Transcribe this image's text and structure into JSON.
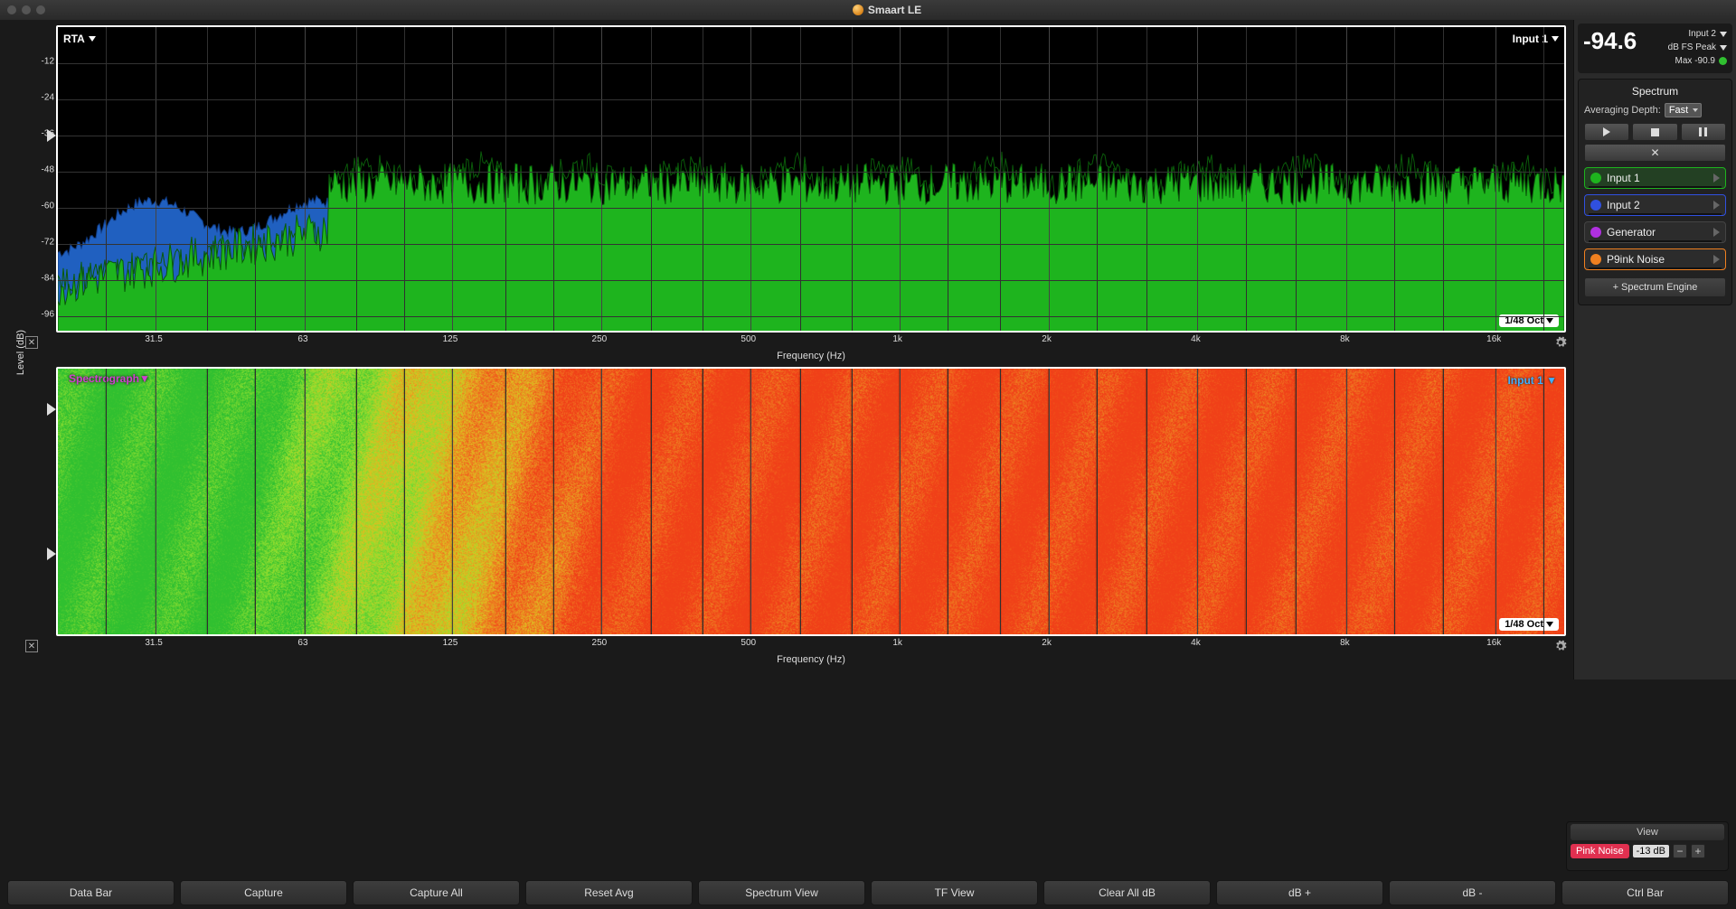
{
  "window": {
    "title": "Smaart LE"
  },
  "rta": {
    "label": "RTA",
    "input_label": "Input 1",
    "oct_label": "1/48 Oct",
    "xlabel": "Frequency (Hz)",
    "ylabel": "Level (dB)",
    "ylim": [
      -102,
      0
    ],
    "yticks": [
      -12,
      -24,
      -36,
      -48,
      -60,
      -72,
      -84,
      -96
    ],
    "xticks": [
      "31.5",
      "63",
      "125",
      "250",
      "500",
      "1k",
      "2k",
      "4k",
      "8k",
      "16k"
    ],
    "colors": {
      "series_green": "#1eb41e",
      "series_blue": "#2060c0",
      "outline_green": "#0a5a0a",
      "grid": "#404040",
      "bg": "#000000"
    }
  },
  "spectro": {
    "label": "Spectrograph",
    "input_label": "Input 1",
    "oct_label": "1/48 Oct",
    "xlabel": "Frequency (Hz)",
    "xticks": [
      "31.5",
      "63",
      "125",
      "250",
      "500",
      "1k",
      "2k",
      "4k",
      "8k",
      "16k"
    ],
    "colors": {
      "low": "#30c030",
      "lowmid": "#90e030",
      "mid": "#e0c020",
      "high": "#f07020",
      "peak": "#f04018"
    }
  },
  "meter": {
    "value": "-94.6",
    "input": "Input 2",
    "units": "dB FS Peak",
    "max_label": "Max -90.9",
    "status_color": "#30c030"
  },
  "panel": {
    "title": "Spectrum",
    "avg_label": "Averaging Depth:",
    "avg_value": "Fast"
  },
  "channels": [
    {
      "name": "Input 1",
      "color": "#1eb41e",
      "selected": true,
      "border": "#1eb41e"
    },
    {
      "name": "Input 2",
      "color": "#3050e0",
      "selected": false,
      "border": "#3050e0"
    },
    {
      "name": "Generator",
      "color": "#b030e0",
      "selected": false,
      "border": "#444"
    },
    {
      "name": "P9ink Noise",
      "color": "#f08020",
      "selected": false,
      "border": "#f08020"
    }
  ],
  "add_engine_label": "+ Spectrum Engine",
  "view": {
    "title": "View",
    "noise_label": "Pink Noise",
    "noise_level": "-13 dB"
  },
  "footer": [
    "Data Bar",
    "Capture",
    "Capture All",
    "Reset Avg",
    "Spectrum View",
    "TF View",
    "Clear All dB",
    "dB +",
    "dB -",
    "Ctrl Bar"
  ]
}
